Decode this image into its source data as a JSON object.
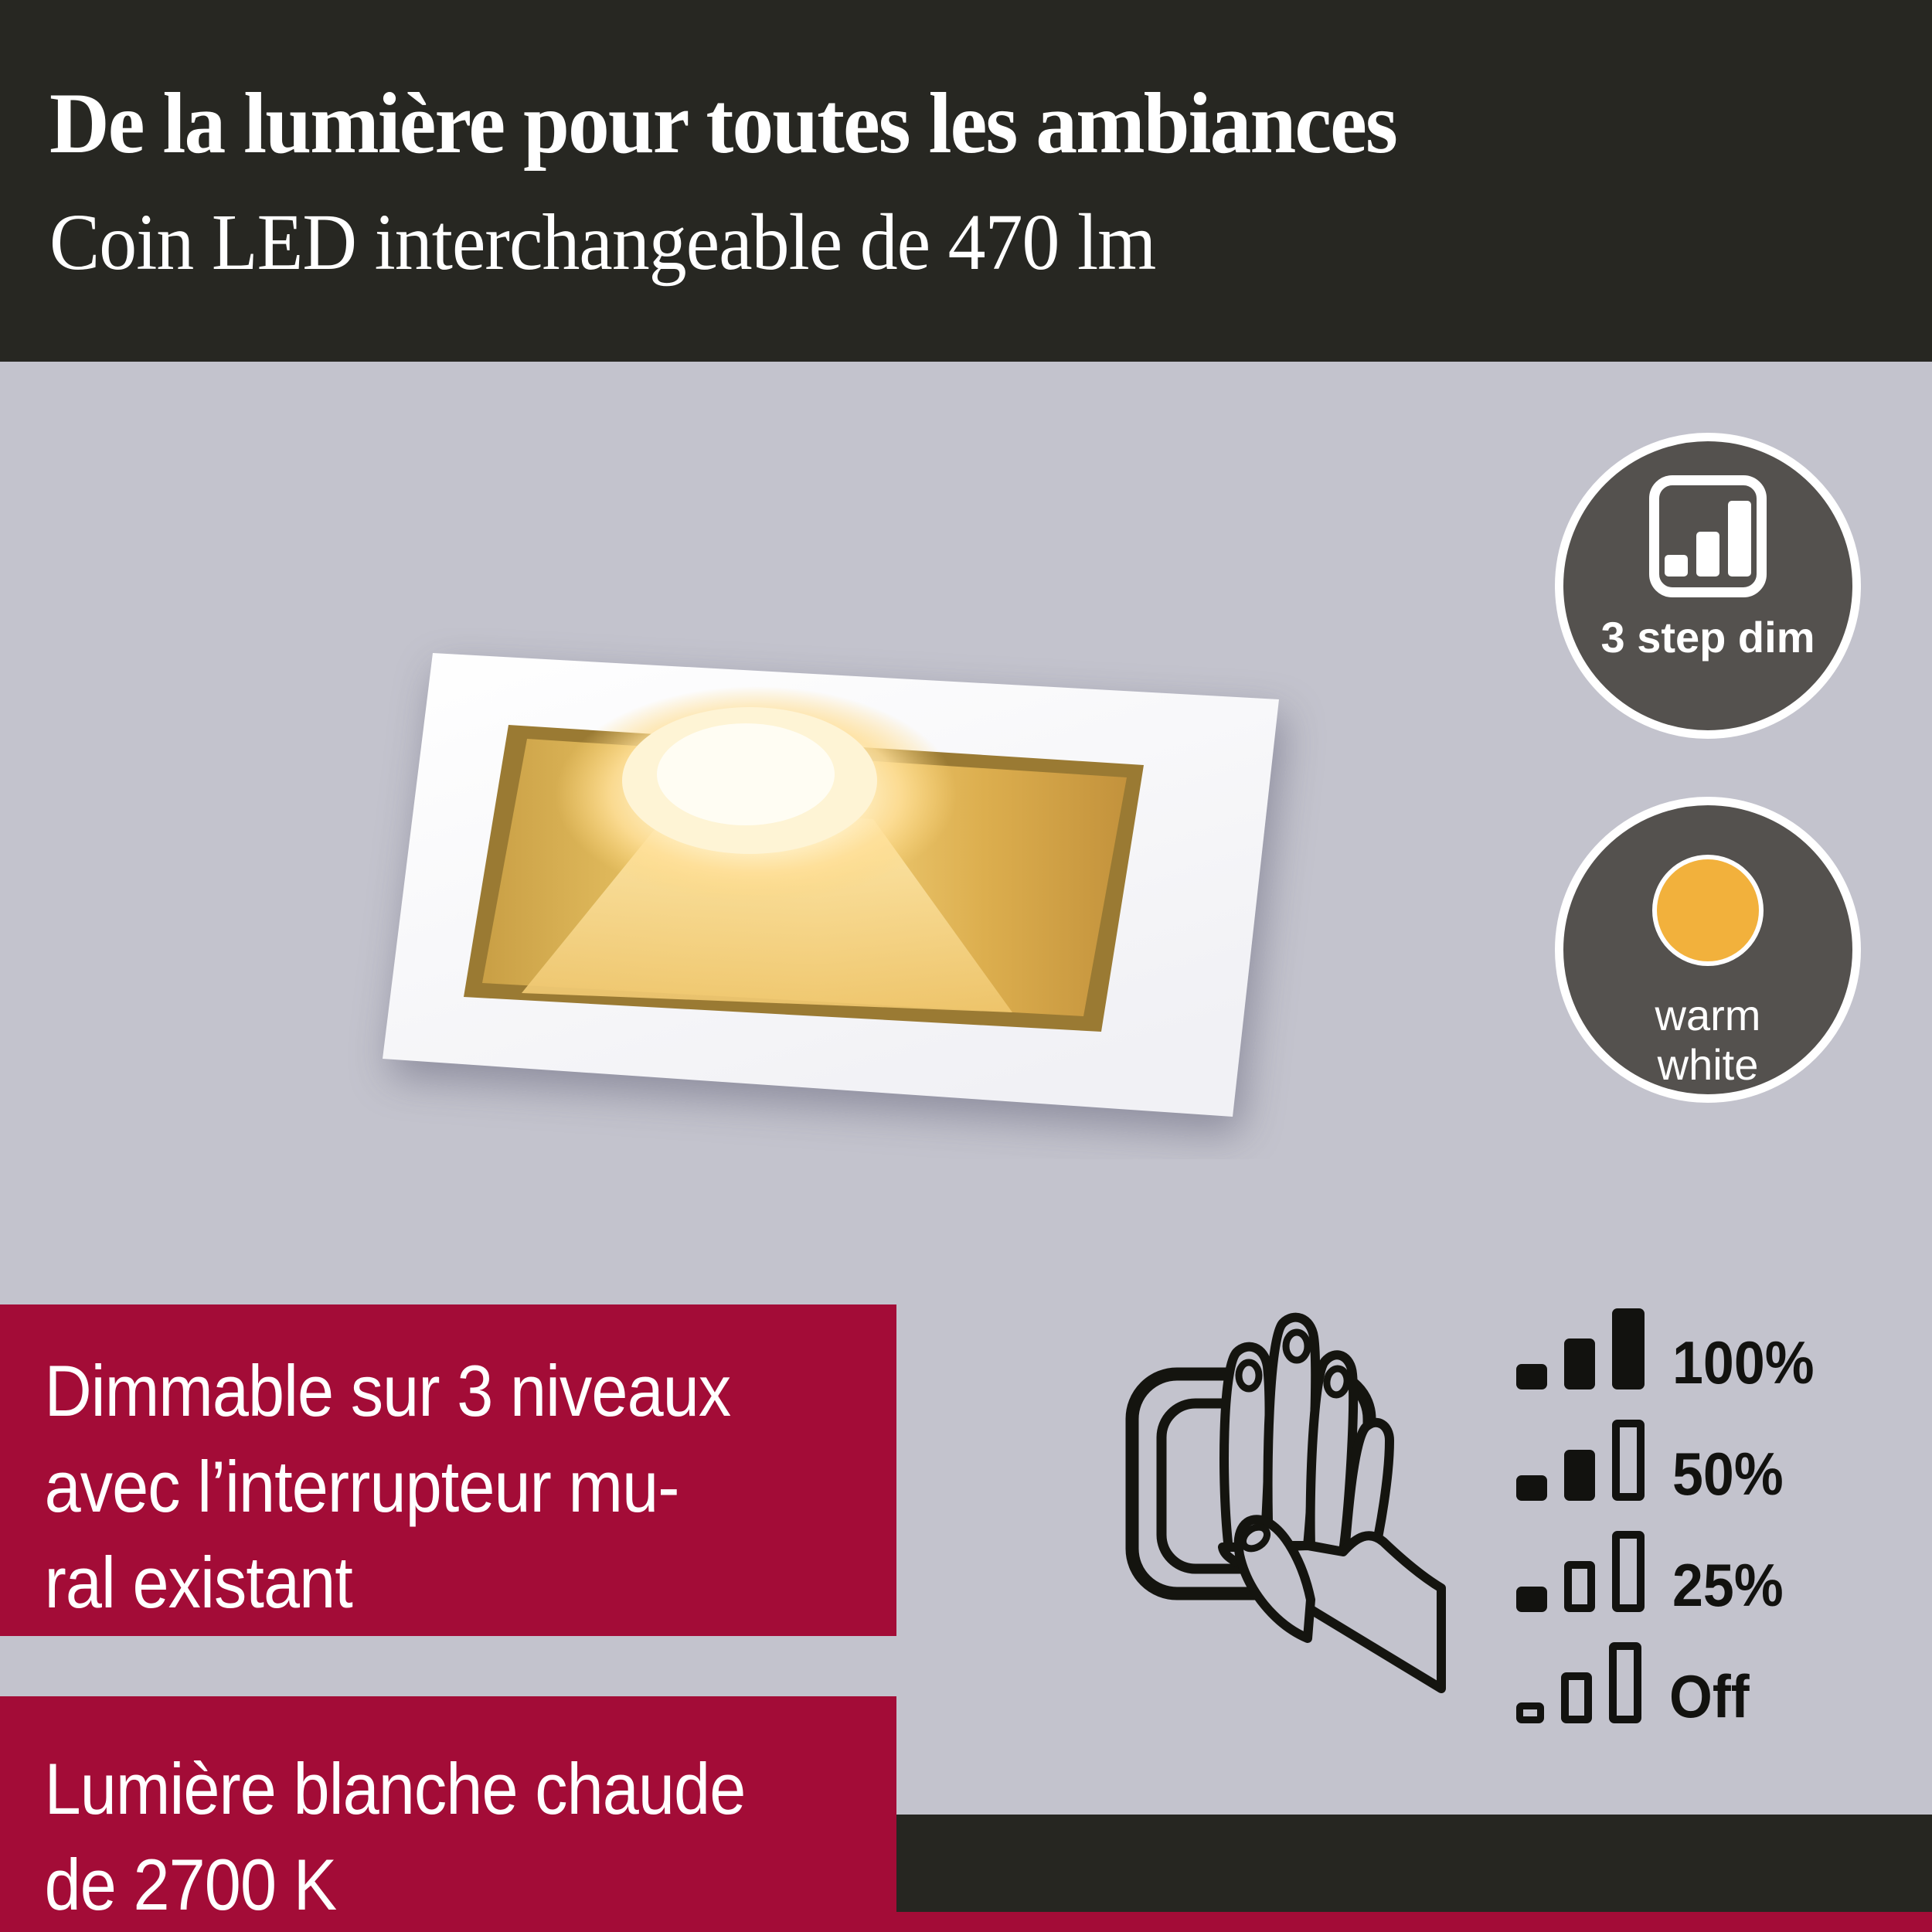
{
  "palette": {
    "background": "#c3c3cd",
    "band_dark": "#272722",
    "accent_red": "#a30c37",
    "badge_gray": "#54514e",
    "amber": "#f2b13c",
    "ink": "#12120f",
    "gold_light": "#f0d381",
    "gold_dark": "#c3923c",
    "white": "#ffffff"
  },
  "header": {
    "line1": "De la lumière pour toutes les ambiances",
    "line2": "Coin LED interchangeable de 470 lm"
  },
  "badges": {
    "step_dim": {
      "icon": "bar-chart-3-steps-icon",
      "label": "3 step dim"
    },
    "warm_white": {
      "icon": "warm-white-dot-icon",
      "line1": "warm",
      "line2": "white"
    }
  },
  "feature_blocks": {
    "dimming": {
      "lines": [
        "Dimmable sur 3 niveaux",
        "avec l’interrupteur mu-",
        "ral existant"
      ]
    },
    "light_color": {
      "lines": [
        "Lumière blanche chaude",
        "de 2700 K"
      ]
    }
  },
  "dim_levels": {
    "rows": [
      {
        "label": "100%",
        "bars": [
          "filled",
          "filled",
          "filled"
        ]
      },
      {
        "label": "50%",
        "bars": [
          "filled",
          "filled",
          "outline"
        ]
      },
      {
        "label": "25%",
        "bars": [
          "filled",
          "outline",
          "outline"
        ]
      },
      {
        "label": "Off",
        "bars": [
          "outline-small",
          "outline",
          "outline"
        ]
      }
    ]
  },
  "illustrations": {
    "hand_switch": "hand-pressing-wall-switch-illustration",
    "product": "square-recessed-led-spot-white-gold-photo"
  }
}
